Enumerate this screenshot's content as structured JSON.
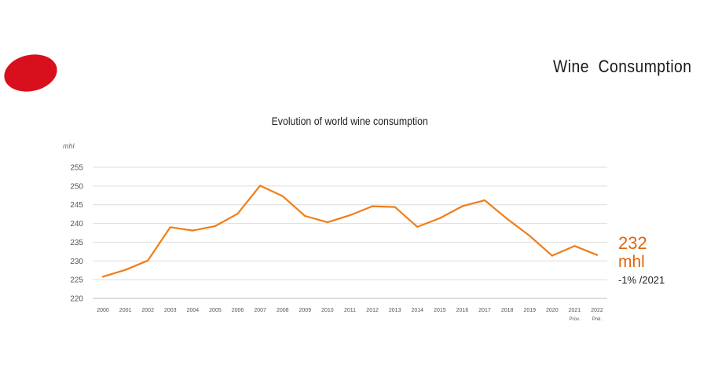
{
  "header": {
    "title": "Wine  Consumption",
    "logo_color": "#d8101e"
  },
  "chart_data": {
    "type": "line",
    "title": "Evolution of world wine consumption",
    "ylabel": "mhl",
    "xlabel": "",
    "ylim": [
      220,
      255
    ],
    "yticks": [
      220,
      225,
      230,
      235,
      240,
      245,
      250,
      255
    ],
    "grid": true,
    "categories": [
      "2000",
      "2001",
      "2002",
      "2003",
      "2004",
      "2005",
      "2006",
      "2007",
      "2008",
      "2009",
      "2010",
      "2011",
      "2012",
      "2013",
      "2014",
      "2015",
      "2016",
      "2017",
      "2018",
      "2019",
      "2020",
      "2021",
      "2022"
    ],
    "category_sublabels": [
      "",
      "",
      "",
      "",
      "",
      "",
      "",
      "",
      "",
      "",
      "",
      "",
      "",
      "",
      "",
      "",
      "",
      "",
      "",
      "",
      "",
      "Prov.",
      "Prel."
    ],
    "series": [
      {
        "color": "#f07d1a",
        "values": [
          225.8,
          227.6,
          230.1,
          239.0,
          238.1,
          239.3,
          242.6,
          250.1,
          247.3,
          242.0,
          240.3,
          242.2,
          244.6,
          244.4,
          239.1,
          241.4,
          244.6,
          246.2,
          241.2,
          236.7,
          231.4,
          234.0,
          231.6
        ]
      }
    ]
  },
  "callout": {
    "value": "232",
    "unit": "mhl",
    "change": "-1% /2021",
    "color": "#e0650f"
  }
}
